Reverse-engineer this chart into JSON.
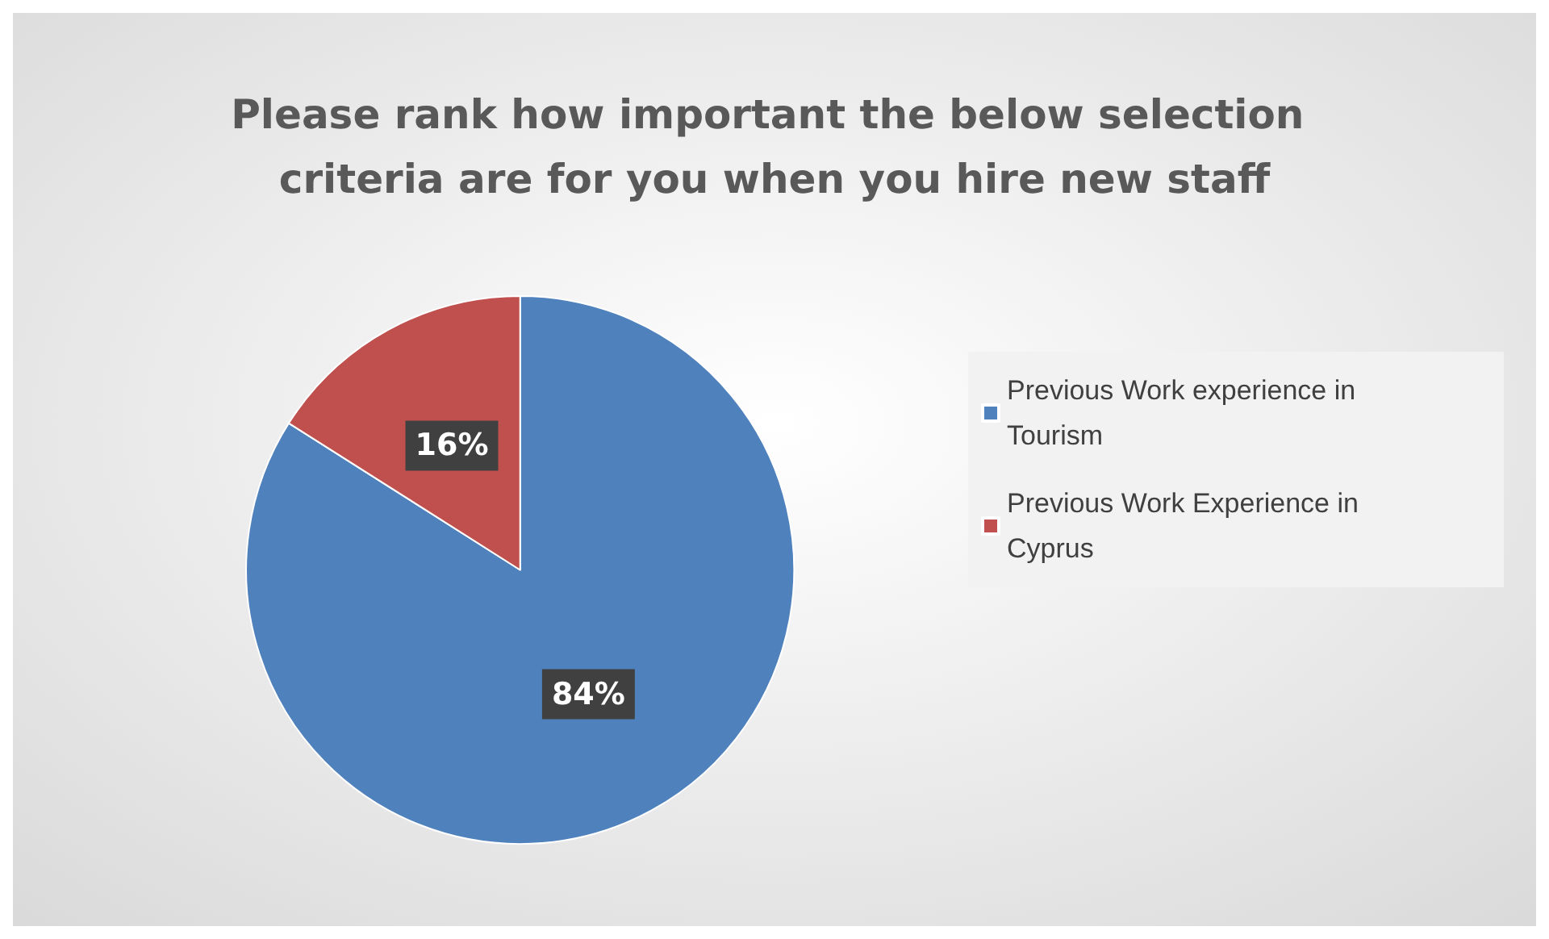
{
  "chart_data": {
    "type": "pie",
    "title": "Please rank how important the below selection criteria are for you when you hire new staff",
    "categories": [
      "Previous Work experience in Tourism",
      "Previous Work Experience in Cyprus"
    ],
    "values": [
      84,
      16
    ],
    "colors": [
      "#4f81bd",
      "#c0504d"
    ],
    "value_labels": [
      "84%",
      "16%"
    ],
    "legend": "right"
  }
}
